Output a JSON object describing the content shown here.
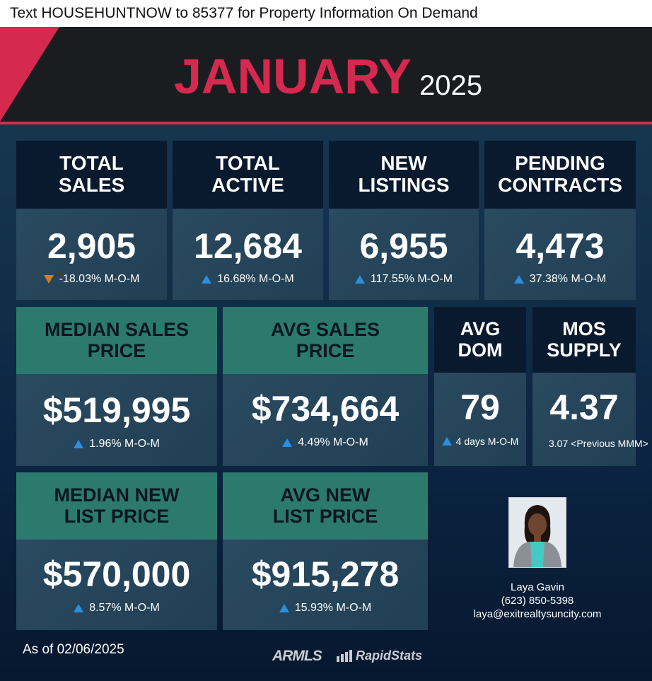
{
  "top_banner": "Text HOUSEHUNTNOW to 85377 for Property Information On Demand",
  "header": {
    "month": "JANUARY",
    "year": "2025"
  },
  "colors": {
    "accent_red": "#d6294f",
    "teal": "#2b7a6c",
    "up_arrow": "#2b8fe0",
    "down_arrow": "#e07a1f"
  },
  "stats": [
    {
      "id": "total-sales",
      "title": [
        "TOTAL",
        "SALES"
      ],
      "value": "2,905",
      "direction": "down",
      "change": "-18.03% M-O-M"
    },
    {
      "id": "total-active",
      "title": [
        "TOTAL",
        "ACTIVE"
      ],
      "value": "12,684",
      "direction": "up",
      "change": "16.68% M-O-M"
    },
    {
      "id": "new-listings",
      "title": [
        "NEW",
        "LISTINGS"
      ],
      "value": "6,955",
      "direction": "up",
      "change": "117.55% M-O-M"
    },
    {
      "id": "pending-contracts",
      "title": [
        "PENDING",
        "CONTRACTS"
      ],
      "value": "4,473",
      "direction": "up",
      "change": "37.38% M-O-M"
    },
    {
      "id": "median-sales-price",
      "title": [
        "MEDIAN SALES",
        "PRICE"
      ],
      "value": "$519,995",
      "direction": "up",
      "change": "1.96% M-O-M"
    },
    {
      "id": "avg-sales-price",
      "title": [
        "AVG SALES",
        "PRICE"
      ],
      "value": "$734,664",
      "direction": "up",
      "change": "4.49% M-O-M"
    },
    {
      "id": "avg-dom",
      "title": [
        "AVG",
        "DOM"
      ],
      "value": "79",
      "direction": "up",
      "change": "4 days M-O-M"
    },
    {
      "id": "mos-supply",
      "title": [
        "MOS",
        "SUPPLY"
      ],
      "value": "4.37",
      "direction": "none",
      "change": "3.07 <Previous MMM>"
    },
    {
      "id": "median-new-list-price",
      "title": [
        "MEDIAN NEW",
        "LIST PRICE"
      ],
      "value": "$570,000",
      "direction": "up",
      "change": "8.57% M-O-M"
    },
    {
      "id": "avg-new-list-price",
      "title": [
        "AVG NEW",
        "LIST PRICE"
      ],
      "value": "$915,278",
      "direction": "up",
      "change": "15.93% M-O-M"
    }
  ],
  "agent": {
    "name": "Laya Gavin",
    "phone": "(623) 850-5398",
    "email": "laya@exitrealtysuncity.com"
  },
  "footer": {
    "as_of": "As of 02/06/2025",
    "logo_armls": "ARMLS",
    "logo_rapidstats": "RapidStats"
  }
}
